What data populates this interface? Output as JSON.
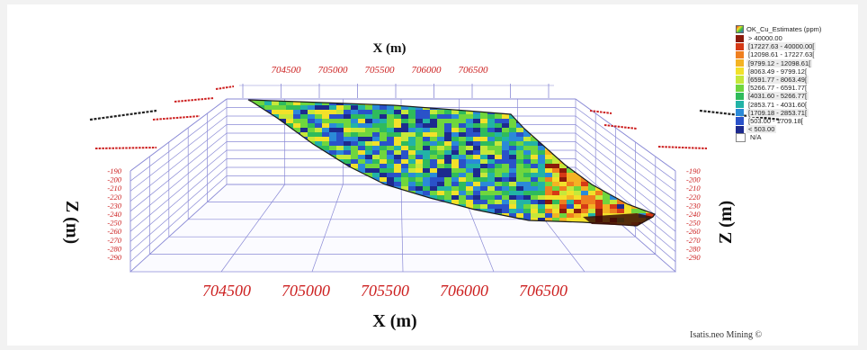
{
  "plot": {
    "x_axis_title_top": "X (m)",
    "x_axis_title_bottom": "X (m)",
    "z_axis_title_left": "Z (m)",
    "z_axis_title_right": "Z (m)",
    "x_ticks_top": [
      "704500",
      "705000",
      "705500",
      "706000",
      "706500"
    ],
    "x_ticks_bottom": [
      "704500",
      "705000",
      "705500",
      "706000",
      "706500"
    ],
    "z_ticks": [
      "-190",
      "-200",
      "-210",
      "-220",
      "-230",
      "-240",
      "-250",
      "-260",
      "-270",
      "-280",
      "-290"
    ],
    "colors": {
      "grid": "#8a8ad6",
      "tick_label": "#cc1f1f",
      "axis_title": "#111111"
    }
  },
  "legend": {
    "title": "OK_Cu_Estimates (ppm)",
    "classes": [
      {
        "label": "> 40000.00",
        "color": "#8b1a0b"
      },
      {
        "label": "[17227.63 - 40000.00[",
        "color": "#d63a16"
      },
      {
        "label": "[12098.61 - 17227.63[",
        "color": "#ef7f1f"
      },
      {
        "label": "[9799.12 - 12098.61[",
        "color": "#f4b323"
      },
      {
        "label": "[8063.49 - 9799.12[",
        "color": "#f2e12a"
      },
      {
        "label": "[6591.77 - 8063.49[",
        "color": "#c6e83a"
      },
      {
        "label": "[5266.77 - 6591.77[",
        "color": "#6fd63e"
      },
      {
        "label": "[4031.60 - 5266.77[",
        "color": "#2fbb5c"
      },
      {
        "label": "[2853.71 - 4031.60[",
        "color": "#22b3a6"
      },
      {
        "label": "[1709.18 - 2853.71[",
        "color": "#2b8ad8"
      },
      {
        "label": "[503.00 - 1709.18[",
        "color": "#2a52c9"
      },
      {
        "label": "< 503.00",
        "color": "#1d2a8e"
      },
      {
        "label": "N/A",
        "color": "#ffffff"
      }
    ]
  },
  "watermark": "Isatis.neo Mining ©"
}
